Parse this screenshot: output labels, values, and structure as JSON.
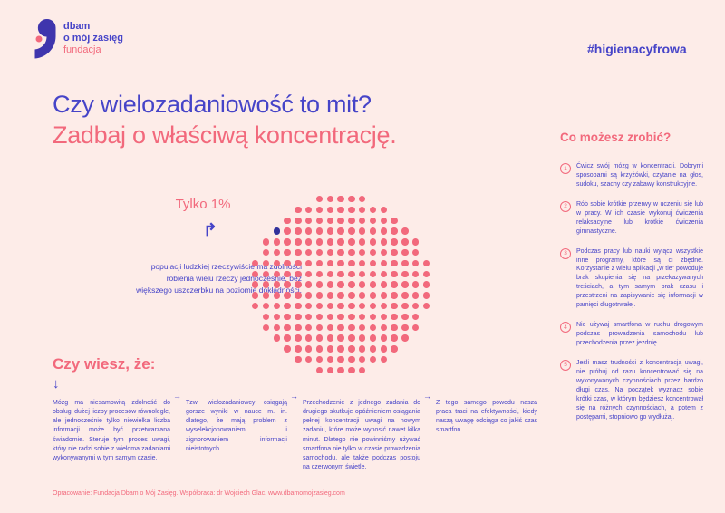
{
  "colors": {
    "background": "#fdece8",
    "purple": "#4644c8",
    "pink": "#f2697c",
    "logo_purple": "#3f35ad",
    "highlight_dot": "#31319b"
  },
  "header": {
    "logo": {
      "line1": "dbam",
      "line2": "o mój zasięg",
      "line3": "fundacja"
    },
    "hashtag": "#higienacyfrowa"
  },
  "title": {
    "line1": "Czy wielozadaniowość to mit?",
    "line2": "Zadbaj o właściwą koncentrację."
  },
  "stat": {
    "label": "Tylko 1%",
    "arrow": "↱",
    "description": "populacji ludzkiej rzeczywiście ma zdolności robienia wielu rzeczy jednocześnie, bez większego uszczerbku na poziomie dokładności."
  },
  "visualization": {
    "type": "dot-matrix-circle",
    "meaning": "1 highlighted dot among all dots represents 1% of population",
    "dot_color": "#f2697c",
    "highlight_color": "#31319b",
    "grid": 17,
    "spacing": 11.8,
    "dot_size": 7.4,
    "radius_units": 8.35,
    "highlight_col": 2,
    "highlight_row": 3
  },
  "actions": {
    "heading": "Co możesz zrobić?",
    "items": [
      {
        "number": "1",
        "text": "Ćwicz swój mózg w koncentracji. Dobrymi sposobami są krzyżówki, czytanie na głos, sudoku, szachy czy zabawy konstrukcyjne."
      },
      {
        "number": "2",
        "text": "Rób sobie krótkie przerwy w uczeniu się lub w pracy. W ich czasie wykonuj ćwiczenia relaksacyjne lub krótkie ćwiczenia gimnastyczne."
      },
      {
        "number": "3",
        "text": "Podczas pracy lub nauki wyłącz wszystkie inne programy, które są ci zbędne. Korzystanie z wielu aplikacji „w tle” powoduje brak skupienia się na przekazywanych treściach, a tym samym brak czasu i przestrzeni na zapisywanie się informacji w pamięci długotrwałej."
      },
      {
        "number": "4",
        "text": "Nie używaj smartfona w ruchu drogowym podczas prowadzenia samochodu lub przechodzenia przez jezdnię."
      },
      {
        "number": "5",
        "text": "Jeśli masz trudności z koncentracją uwagi, nie próbuj od razu koncentrować się na wykonywanych czynnościach przez bardzo długi czas. Na początek wyznacz sobie krótki czas, w którym będziesz koncentrował się na różnych czynnościach, a potem z postępami, stopniowo go wydłużaj."
      }
    ]
  },
  "facts": {
    "heading": "Czy wiesz, że:",
    "down_arrow": "↓",
    "column_arrow": "→",
    "columns": [
      {
        "text": "Mózg ma niesamowitą zdolność do obsługi dużej liczby procesów równolegle, ale jednocześnie tylko niewielka liczba informacji może być przetwarzana świadomie. Steruje tym proces uwagi, który nie radzi sobie z wieloma zadaniami wykonywanymi w tym samym czasie."
      },
      {
        "text": "Tzw. wielozadaniowcy osiągają gorsze wyniki w nauce m. in. dlatego, że mają problem z wyselekcjonowaniem i zignorowaniem informacji nieistotnych."
      },
      {
        "text": "Przechodzenie z jednego zadania do drugiego skutkuje opóźnieniem osiągania pełnej koncentracji uwagi na nowym zadaniu, które może wynosić nawet kilka minut. Dlatego nie powinniśmy używać smartfona nie tylko w czasie prowadzenia samochodu, ale także podczas postoju na czerwonym świetle."
      },
      {
        "text": "Z tego samego powodu nasza praca traci na efektywności, kiedy naszą uwagę odciąga co jakiś czas smartfon."
      }
    ]
  },
  "footer": {
    "credits": "Opracowanie: Fundacja Dbam o Mój Zasięg. Współpraca: dr Wojciech Glac. www.dbamomojzasieg.com"
  }
}
